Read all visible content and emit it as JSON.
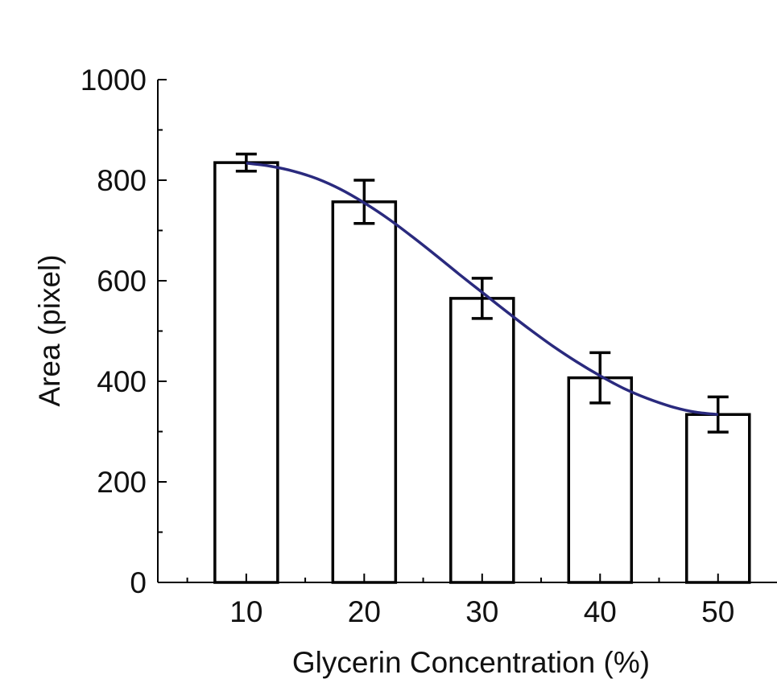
{
  "chart_data": {
    "type": "bar",
    "xlabel": "Glycerin Concentration (%)",
    "ylabel": "Area (pixel)",
    "categories": [
      "10",
      "20",
      "30",
      "40",
      "50"
    ],
    "values": [
      835,
      757,
      565,
      407,
      334
    ],
    "errors": [
      17,
      43,
      40,
      50,
      35
    ],
    "ylim": [
      0,
      1000
    ],
    "xlim": [
      2.5,
      55
    ],
    "yticks": [
      "0",
      "200",
      "400",
      "600",
      "800",
      "1000"
    ],
    "xticks": [
      "10",
      "20",
      "30",
      "40",
      "50"
    ],
    "fit_curve": {
      "x": [
        10,
        12,
        14,
        16,
        18,
        20,
        22,
        24,
        26,
        28,
        30,
        32,
        34,
        36,
        38,
        40,
        42,
        44,
        46,
        48,
        50
      ],
      "y": [
        834,
        828,
        818,
        803,
        782,
        755,
        724,
        689,
        652,
        614,
        577,
        540,
        504,
        470,
        439,
        411,
        386,
        366,
        350,
        339,
        334
      ]
    },
    "colors": {
      "bar_fill": "#ffffff",
      "bar_stroke": "#000000",
      "fit_line": "#2a2a7e",
      "error_bar": "#000000"
    },
    "grid": false,
    "legend": "none"
  }
}
